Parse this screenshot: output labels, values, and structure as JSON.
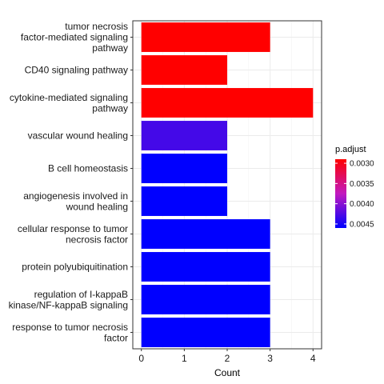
{
  "chart_data": {
    "type": "bar",
    "orientation": "horizontal",
    "categories": [
      [
        "tumor necrosis",
        "factor-mediated signaling",
        "pathway"
      ],
      [
        "CD40 signaling pathway"
      ],
      [
        "cytokine-mediated signaling",
        "pathway"
      ],
      [
        "vascular wound healing"
      ],
      [
        "B cell homeostasis"
      ],
      [
        "angiogenesis involved in",
        "wound healing"
      ],
      [
        "cellular response to tumor",
        "necrosis factor"
      ],
      [
        "protein polyubiquitination"
      ],
      [
        "regulation of I-kappaB",
        "kinase/NF-kappaB signaling"
      ],
      [
        "response to tumor necrosis",
        "factor"
      ]
    ],
    "values": [
      3,
      2,
      4,
      2,
      2,
      2,
      3,
      3,
      3,
      3
    ],
    "p_adjust": [
      0.0029,
      0.0029,
      0.0029,
      0.0043,
      0.0046,
      0.0046,
      0.0046,
      0.0046,
      0.0046,
      0.0046
    ],
    "xlabel": "Count",
    "ylabel": "",
    "xlim": [
      -0.2,
      4.2
    ],
    "xticks": [
      0,
      1,
      2,
      3,
      4
    ],
    "xtick_labels": [
      "0",
      "1",
      "2",
      "3",
      "4"
    ],
    "grid": true,
    "legend": {
      "title": "p.adjust",
      "placement": "right",
      "range": [
        0.0029,
        0.0046
      ],
      "ticks": [
        0.003,
        0.0035,
        0.004,
        0.0045
      ],
      "tick_labels": [
        "0.0030",
        "0.0035",
        "0.0040",
        "0.0045"
      ],
      "color_low_value": "#ff0000",
      "color_high_value": "#0000ff",
      "color_mid_value": "#c21abf"
    }
  }
}
